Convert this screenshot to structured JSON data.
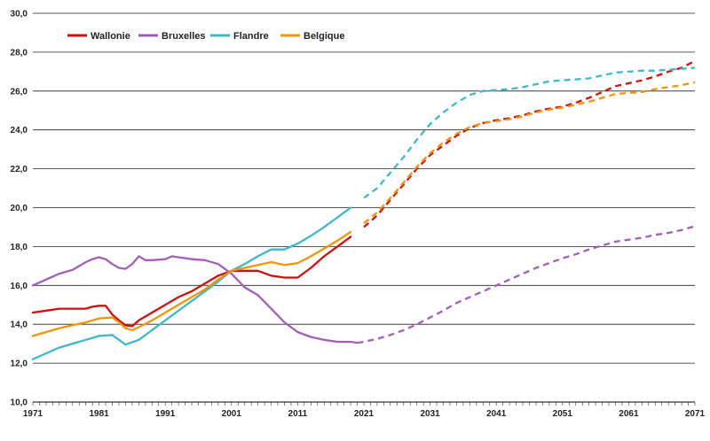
{
  "chart_data": {
    "type": "line",
    "title": "",
    "xlabel": "",
    "ylabel": "",
    "xlim": [
      1971,
      2071
    ],
    "ylim": [
      10,
      30
    ],
    "x_ticks": [
      "1971",
      "1981",
      "1991",
      "2001",
      "2011",
      "2021",
      "2031",
      "2041",
      "2051",
      "2061",
      "2071"
    ],
    "y_ticks": [
      "10,0",
      "12,0",
      "14,0",
      "16,0",
      "18,0",
      "20,0",
      "22,0",
      "24,0",
      "26,0",
      "28,0",
      "30,0"
    ],
    "grid": "horizontal",
    "legend_position": "top-left",
    "projection_start": 2020,
    "series": [
      {
        "name": "Wallonie",
        "color": "#cc1111",
        "points": [
          [
            1971,
            14.6
          ],
          [
            1973,
            14.7
          ],
          [
            1975,
            14.8
          ],
          [
            1977,
            14.8
          ],
          [
            1979,
            14.8
          ],
          [
            1980,
            14.9
          ],
          [
            1981,
            14.95
          ],
          [
            1982,
            14.95
          ],
          [
            1983,
            14.5
          ],
          [
            1984,
            14.2
          ],
          [
            1985,
            13.95
          ],
          [
            1986,
            13.9
          ],
          [
            1987,
            14.2
          ],
          [
            1989,
            14.6
          ],
          [
            1991,
            15.0
          ],
          [
            1993,
            15.4
          ],
          [
            1995,
            15.7
          ],
          [
            1997,
            16.1
          ],
          [
            1999,
            16.5
          ],
          [
            2001,
            16.75
          ],
          [
            2003,
            16.75
          ],
          [
            2005,
            16.75
          ],
          [
            2007,
            16.5
          ],
          [
            2009,
            16.4
          ],
          [
            2011,
            16.4
          ],
          [
            2013,
            16.9
          ],
          [
            2015,
            17.5
          ],
          [
            2017,
            18.0
          ],
          [
            2019,
            18.5
          ],
          [
            2021,
            19.0
          ],
          [
            2023,
            19.6
          ],
          [
            2025,
            20.4
          ],
          [
            2027,
            21.2
          ],
          [
            2029,
            22.0
          ],
          [
            2031,
            22.7
          ],
          [
            2033,
            23.2
          ],
          [
            2035,
            23.7
          ],
          [
            2037,
            24.1
          ],
          [
            2039,
            24.35
          ],
          [
            2041,
            24.5
          ],
          [
            2043,
            24.6
          ],
          [
            2045,
            24.75
          ],
          [
            2047,
            24.95
          ],
          [
            2049,
            25.1
          ],
          [
            2051,
            25.2
          ],
          [
            2053,
            25.4
          ],
          [
            2055,
            25.65
          ],
          [
            2057,
            25.95
          ],
          [
            2059,
            26.25
          ],
          [
            2061,
            26.4
          ],
          [
            2063,
            26.55
          ],
          [
            2065,
            26.75
          ],
          [
            2067,
            27.0
          ],
          [
            2069,
            27.2
          ],
          [
            2071,
            27.55
          ]
        ]
      },
      {
        "name": "Bruxelles",
        "color": "#a25fb8",
        "points": [
          [
            1971,
            16.0
          ],
          [
            1973,
            16.3
          ],
          [
            1975,
            16.6
          ],
          [
            1977,
            16.8
          ],
          [
            1979,
            17.2
          ],
          [
            1980,
            17.35
          ],
          [
            1981,
            17.45
          ],
          [
            1982,
            17.35
          ],
          [
            1983,
            17.1
          ],
          [
            1984,
            16.9
          ],
          [
            1985,
            16.85
          ],
          [
            1986,
            17.1
          ],
          [
            1987,
            17.5
          ],
          [
            1988,
            17.3
          ],
          [
            1989,
            17.3
          ],
          [
            1991,
            17.35
          ],
          [
            1992,
            17.5
          ],
          [
            1993,
            17.45
          ],
          [
            1995,
            17.35
          ],
          [
            1997,
            17.3
          ],
          [
            1999,
            17.1
          ],
          [
            2001,
            16.6
          ],
          [
            2003,
            15.9
          ],
          [
            2005,
            15.5
          ],
          [
            2007,
            14.8
          ],
          [
            2009,
            14.1
          ],
          [
            2011,
            13.6
          ],
          [
            2013,
            13.35
          ],
          [
            2015,
            13.2
          ],
          [
            2017,
            13.1
          ],
          [
            2019,
            13.1
          ],
          [
            2020,
            13.05
          ],
          [
            2021,
            13.1
          ],
          [
            2023,
            13.25
          ],
          [
            2025,
            13.45
          ],
          [
            2027,
            13.7
          ],
          [
            2029,
            14.0
          ],
          [
            2031,
            14.35
          ],
          [
            2033,
            14.7
          ],
          [
            2035,
            15.1
          ],
          [
            2037,
            15.4
          ],
          [
            2039,
            15.7
          ],
          [
            2041,
            16.0
          ],
          [
            2043,
            16.3
          ],
          [
            2045,
            16.6
          ],
          [
            2047,
            16.9
          ],
          [
            2049,
            17.15
          ],
          [
            2051,
            17.4
          ],
          [
            2053,
            17.6
          ],
          [
            2055,
            17.85
          ],
          [
            2057,
            18.05
          ],
          [
            2059,
            18.25
          ],
          [
            2061,
            18.35
          ],
          [
            2063,
            18.45
          ],
          [
            2065,
            18.6
          ],
          [
            2067,
            18.7
          ],
          [
            2069,
            18.85
          ],
          [
            2071,
            19.05
          ]
        ]
      },
      {
        "name": "Flandre",
        "color": "#40b8c8",
        "points": [
          [
            1971,
            12.2
          ],
          [
            1973,
            12.5
          ],
          [
            1975,
            12.8
          ],
          [
            1977,
            13.0
          ],
          [
            1979,
            13.2
          ],
          [
            1981,
            13.4
          ],
          [
            1983,
            13.45
          ],
          [
            1985,
            12.95
          ],
          [
            1987,
            13.2
          ],
          [
            1989,
            13.7
          ],
          [
            1991,
            14.2
          ],
          [
            1993,
            14.7
          ],
          [
            1995,
            15.2
          ],
          [
            1997,
            15.7
          ],
          [
            1999,
            16.2
          ],
          [
            2001,
            16.75
          ],
          [
            2003,
            17.1
          ],
          [
            2005,
            17.5
          ],
          [
            2007,
            17.85
          ],
          [
            2009,
            17.85
          ],
          [
            2011,
            18.15
          ],
          [
            2013,
            18.55
          ],
          [
            2015,
            19.0
          ],
          [
            2017,
            19.5
          ],
          [
            2019,
            20.0
          ],
          [
            2021,
            20.5
          ],
          [
            2023,
            21.0
          ],
          [
            2025,
            21.8
          ],
          [
            2027,
            22.6
          ],
          [
            2029,
            23.5
          ],
          [
            2031,
            24.3
          ],
          [
            2033,
            24.9
          ],
          [
            2035,
            25.4
          ],
          [
            2037,
            25.8
          ],
          [
            2039,
            26.0
          ],
          [
            2041,
            26.05
          ],
          [
            2043,
            26.1
          ],
          [
            2045,
            26.2
          ],
          [
            2047,
            26.35
          ],
          [
            2049,
            26.5
          ],
          [
            2051,
            26.55
          ],
          [
            2053,
            26.6
          ],
          [
            2055,
            26.65
          ],
          [
            2057,
            26.8
          ],
          [
            2059,
            26.95
          ],
          [
            2061,
            27.0
          ],
          [
            2063,
            27.05
          ],
          [
            2065,
            27.05
          ],
          [
            2067,
            27.1
          ],
          [
            2069,
            27.15
          ],
          [
            2071,
            27.2
          ]
        ]
      },
      {
        "name": "Belgique",
        "color": "#f0960a",
        "points": [
          [
            1971,
            13.4
          ],
          [
            1973,
            13.6
          ],
          [
            1975,
            13.8
          ],
          [
            1977,
            13.95
          ],
          [
            1979,
            14.1
          ],
          [
            1981,
            14.3
          ],
          [
            1983,
            14.35
          ],
          [
            1984,
            14.1
          ],
          [
            1985,
            13.8
          ],
          [
            1986,
            13.7
          ],
          [
            1987,
            13.85
          ],
          [
            1989,
            14.2
          ],
          [
            1991,
            14.6
          ],
          [
            1993,
            15.0
          ],
          [
            1995,
            15.4
          ],
          [
            1997,
            15.8
          ],
          [
            1999,
            16.3
          ],
          [
            2001,
            16.75
          ],
          [
            2003,
            16.9
          ],
          [
            2005,
            17.05
          ],
          [
            2007,
            17.2
          ],
          [
            2009,
            17.05
          ],
          [
            2011,
            17.15
          ],
          [
            2013,
            17.5
          ],
          [
            2015,
            17.9
          ],
          [
            2017,
            18.3
          ],
          [
            2019,
            18.75
          ],
          [
            2021,
            19.2
          ],
          [
            2023,
            19.75
          ],
          [
            2025,
            20.5
          ],
          [
            2027,
            21.3
          ],
          [
            2029,
            22.1
          ],
          [
            2031,
            22.8
          ],
          [
            2033,
            23.35
          ],
          [
            2035,
            23.8
          ],
          [
            2037,
            24.15
          ],
          [
            2039,
            24.35
          ],
          [
            2041,
            24.45
          ],
          [
            2043,
            24.55
          ],
          [
            2045,
            24.7
          ],
          [
            2047,
            24.9
          ],
          [
            2049,
            25.05
          ],
          [
            2051,
            25.15
          ],
          [
            2053,
            25.3
          ],
          [
            2055,
            25.45
          ],
          [
            2057,
            25.65
          ],
          [
            2059,
            25.85
          ],
          [
            2061,
            25.9
          ],
          [
            2063,
            25.95
          ],
          [
            2065,
            26.1
          ],
          [
            2067,
            26.2
          ],
          [
            2069,
            26.3
          ],
          [
            2071,
            26.45
          ]
        ]
      }
    ]
  }
}
